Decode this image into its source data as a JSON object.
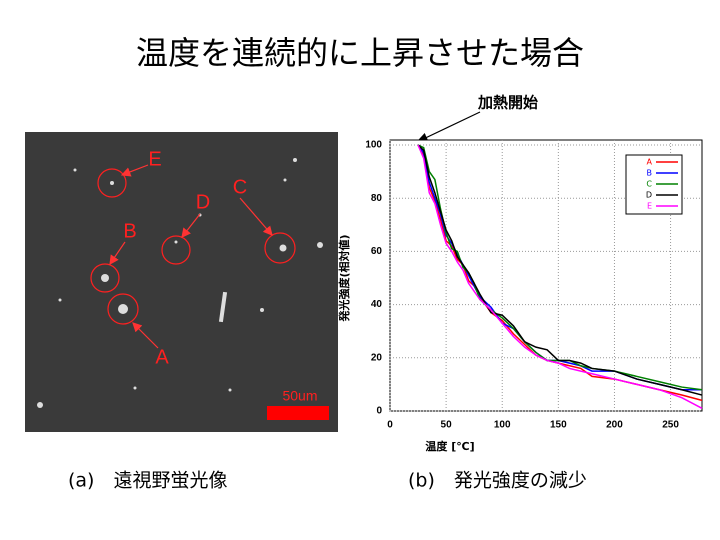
{
  "title": "温度を連続的に上昇させた場合",
  "image": {
    "labels": [
      "E",
      "B",
      "D",
      "C",
      "A"
    ],
    "scale_label": "50um"
  },
  "captions": [
    "(a)　遠視野蛍光像",
    "(b)　発光強度の減少"
  ],
  "chart_data": {
    "type": "line",
    "annotation": "加熱開始",
    "xlabel": "温度 [℃]",
    "ylabel": "発光強度(相対値)",
    "x": [
      25,
      30,
      35,
      40,
      45,
      50,
      55,
      60,
      65,
      70,
      75,
      80,
      90,
      100,
      110,
      120,
      130,
      140,
      150,
      160,
      170,
      180,
      200,
      220,
      240,
      260,
      278
    ],
    "series": [
      {
        "name": "A",
        "color": "#ff0000",
        "values": [
          100,
          96,
          84,
          79,
          72,
          64,
          62,
          57,
          55,
          49,
          47,
          43,
          37,
          34,
          29,
          25,
          21,
          19,
          18,
          17,
          16,
          13,
          12,
          10,
          8,
          6,
          4
        ]
      },
      {
        "name": "B",
        "color": "#0000ff",
        "values": [
          100,
          97,
          86,
          80,
          74,
          66,
          63,
          59,
          55,
          51,
          47,
          43,
          39,
          33,
          31,
          26,
          22,
          19,
          19,
          18,
          17,
          15,
          15,
          12,
          10,
          8,
          8
        ]
      },
      {
        "name": "C",
        "color": "#008000",
        "values": [
          100,
          99,
          90,
          87,
          76,
          67,
          61,
          60,
          54,
          52,
          48,
          42,
          38,
          35,
          31,
          26,
          22,
          19,
          19,
          19,
          17,
          16,
          15,
          13,
          11,
          9,
          8
        ]
      },
      {
        "name": "D",
        "color": "#000000",
        "values": [
          100,
          98,
          88,
          82,
          75,
          68,
          64,
          58,
          55,
          52,
          48,
          44,
          37,
          36,
          32,
          26,
          24,
          23,
          19,
          19,
          18,
          16,
          15,
          12,
          10,
          8,
          6
        ]
      },
      {
        "name": "E",
        "color": "#ff00ff",
        "values": [
          100,
          95,
          82,
          78,
          70,
          63,
          60,
          56,
          53,
          48,
          45,
          42,
          38,
          33,
          28,
          24,
          21,
          19,
          18,
          16,
          15,
          14,
          12,
          10,
          8,
          5,
          1
        ]
      }
    ],
    "xlim": [
      0,
      278
    ],
    "ylim": [
      0,
      100
    ],
    "xticks": [
      0,
      50,
      100,
      150,
      200,
      250
    ],
    "yticks": [
      0,
      20,
      40,
      60,
      80,
      100
    ],
    "grid": true,
    "legend": "upper right"
  }
}
